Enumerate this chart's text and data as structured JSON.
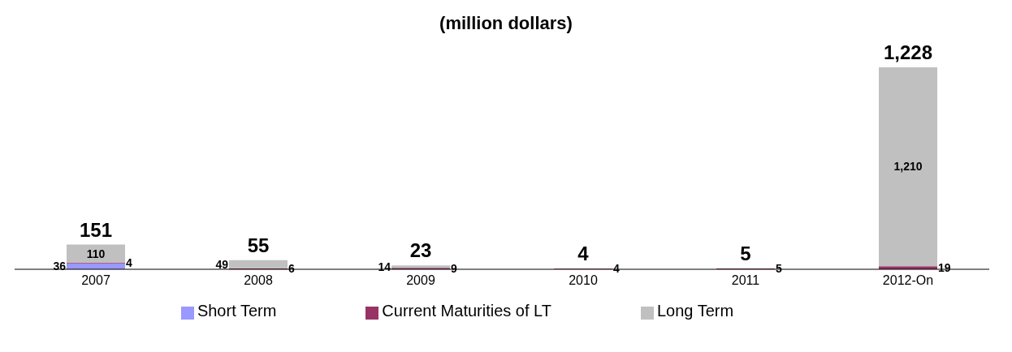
{
  "chart_data": {
    "type": "bar",
    "title": "(million dollars)",
    "stacked": true,
    "legend": "bottom",
    "categories": [
      "2007",
      "2008",
      "2009",
      "2010",
      "2011",
      "2012-On"
    ],
    "series": [
      {
        "name": "Short Term",
        "color": "#9999ff",
        "values": [
          36,
          null,
          null,
          null,
          null,
          null
        ],
        "value_labels": [
          "36",
          null,
          null,
          null,
          null,
          null
        ]
      },
      {
        "name": "Current Maturities of LT",
        "color": "#993366",
        "values": [
          4,
          6,
          9,
          4,
          5,
          19
        ],
        "value_labels": [
          "4",
          "6",
          "9",
          "4",
          "5",
          "19"
        ]
      },
      {
        "name": "Long Term",
        "color": "#c0c0c0",
        "values": [
          110,
          49,
          14,
          null,
          null,
          1210
        ],
        "value_labels": [
          "110",
          "49",
          "14",
          null,
          null,
          "1,210"
        ]
      }
    ],
    "totals": [
      "151",
      "55",
      "23",
      "4",
      "5",
      "1,228"
    ]
  }
}
